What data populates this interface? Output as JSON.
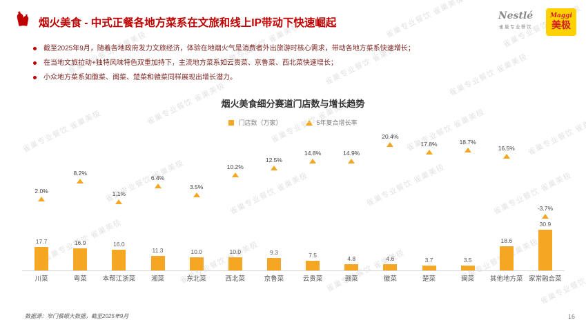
{
  "slide": {
    "page_number": "16",
    "source_note": "数据源：窄门餐眼大数据，截至2025年9月",
    "watermark_text": "雀巢专业餐饮 雀巢美极",
    "accent_color": "#C00000"
  },
  "header": {
    "title": "烟火美食 - 中式正餐各地方菜系在文旅和线上IP带动下快速崛起",
    "nestle_logo": {
      "wordmark": "Nestlé",
      "caption": "雀巢专业餐饮"
    },
    "maggi_logo": {
      "script": "Maggi",
      "name": "美极"
    }
  },
  "bullets": [
    "截至2025年9月，随着各地政府发力文旅经济，体验在地烟火气是消费者外出旅游时核心需求，带动各地方菜系快速增长；",
    "在当地文旅拉动+独特风味特色双重加持下，主流地方菜系如云贵菜、京鲁菜、西北菜快速增长；",
    "小众地方菜系如徽菜、闽菜、楚菜和赣菜同样展现出增长潜力。"
  ],
  "chart_data": {
    "type": "bar",
    "title": "烟火美食细分赛道门店数与增长趋势",
    "legend": [
      {
        "label": "门店数（万家）",
        "marker": "square"
      },
      {
        "label": "5年复合增长率",
        "marker": "triangle"
      }
    ],
    "legend_position": "top",
    "grid": false,
    "categories": [
      "川菜",
      "粤菜",
      "本帮江浙菜",
      "湘菜",
      "东北菜",
      "西北菜",
      "京鲁菜",
      "云贵菜",
      "赣菜",
      "徽菜",
      "楚菜",
      "闽菜",
      "其他地方菜",
      "家常融合菜"
    ],
    "series": [
      {
        "name": "门店数（万家）",
        "unit": "万家",
        "values": [
          17.7,
          16.9,
          16.0,
          11.3,
          10.0,
          10.0,
          9.3,
          7.5,
          4.8,
          4.6,
          3.7,
          3.5,
          18.6,
          30.9
        ],
        "labels": [
          "17.7",
          "16.9",
          "16.0",
          "11.3",
          "10.0",
          "10.0",
          "9.3",
          "7.5",
          "4.8",
          "4.6",
          "3.7",
          "3.5",
          "18.6",
          "30.9"
        ]
      },
      {
        "name": "5年复合增长率",
        "unit": "%",
        "values": [
          2.0,
          8.2,
          1.1,
          6.4,
          3.5,
          10.2,
          12.5,
          14.8,
          14.9,
          20.4,
          17.8,
          18.7,
          16.5,
          -3.7
        ],
        "labels": [
          "2.0%",
          "8.2%",
          "1.1%",
          "6.4%",
          "3.5%",
          "10.2%",
          "12.5%",
          "14.8%",
          "14.9%",
          "20.4%",
          "17.8%",
          "18.7%",
          "16.5%",
          "-3.7%"
        ]
      }
    ],
    "bar_color": "#F5A623",
    "marker_color": "#F5A623"
  }
}
